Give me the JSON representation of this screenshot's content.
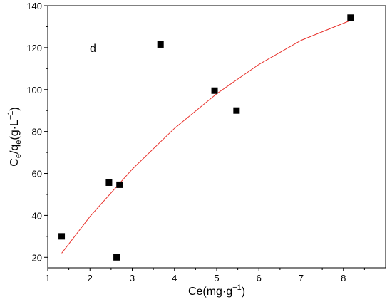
{
  "chart_data": {
    "type": "scatter",
    "panel_label": "d",
    "xlabel": "Ce(mg·g⁻¹)",
    "ylabel": "Ce/qe(g·L⁻¹)",
    "xlim": [
      1,
      9
    ],
    "ylim": [
      15,
      140
    ],
    "xticks": [
      1,
      2,
      3,
      4,
      5,
      6,
      7,
      8
    ],
    "yticks": [
      20,
      40,
      60,
      80,
      100,
      120,
      140
    ],
    "grid": false,
    "series": [
      {
        "marker": "square",
        "color": "#000000",
        "x": [
          1.33,
          2.45,
          2.63,
          2.7,
          3.67,
          4.95,
          5.47,
          8.17
        ],
        "y": [
          30.0,
          55.6,
          20.0,
          54.6,
          121.5,
          99.5,
          90.0,
          134.3
        ]
      }
    ],
    "fit_curve": {
      "color": "#e8302a",
      "x": [
        1.33,
        2.0,
        3.0,
        4.0,
        5.0,
        6.0,
        7.0,
        8.17
      ],
      "y": [
        22.0,
        39.5,
        62.0,
        81.5,
        98.0,
        112.0,
        123.5,
        133.0
      ]
    }
  }
}
